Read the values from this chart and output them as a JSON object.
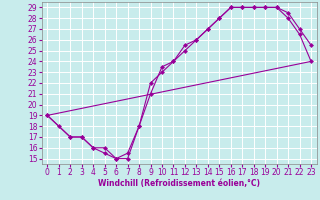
{
  "xlabel": "Windchill (Refroidissement éolien,°C)",
  "bg_color": "#c8ecec",
  "line_color": "#990099",
  "grid_color": "#ffffff",
  "xlim": [
    -0.5,
    23.5
  ],
  "ylim": [
    14.5,
    29.5
  ],
  "xticks": [
    0,
    1,
    2,
    3,
    4,
    5,
    6,
    7,
    8,
    9,
    10,
    11,
    12,
    13,
    14,
    15,
    16,
    17,
    18,
    19,
    20,
    21,
    22,
    23
  ],
  "yticks": [
    15,
    16,
    17,
    18,
    19,
    20,
    21,
    22,
    23,
    24,
    25,
    26,
    27,
    28,
    29
  ],
  "series1_x": [
    0,
    1,
    2,
    3,
    4,
    5,
    6,
    7,
    8,
    9,
    10,
    11,
    12,
    13,
    14,
    15,
    16,
    17,
    18,
    19,
    20,
    21,
    22,
    23
  ],
  "series1_y": [
    19,
    18,
    17,
    17,
    16,
    15.5,
    15,
    15,
    18,
    22,
    23,
    24,
    25.5,
    26,
    27,
    28,
    29,
    29,
    29,
    29,
    29,
    28.5,
    27,
    25.5
  ],
  "series2_x": [
    0,
    2,
    3,
    4,
    5,
    6,
    7,
    8,
    9,
    10,
    11,
    12,
    13,
    14,
    15,
    16,
    17,
    18,
    19,
    20,
    21,
    22,
    23
  ],
  "series2_y": [
    19,
    17,
    17,
    16,
    16,
    15,
    15.5,
    18,
    21,
    23.5,
    24,
    25,
    26,
    27,
    28,
    29,
    29,
    29,
    29,
    29,
    28,
    26.5,
    24
  ],
  "series3_x": [
    0,
    23
  ],
  "series3_y": [
    19,
    24
  ],
  "tick_fontsize": 5.5,
  "xlabel_fontsize": 5.5
}
